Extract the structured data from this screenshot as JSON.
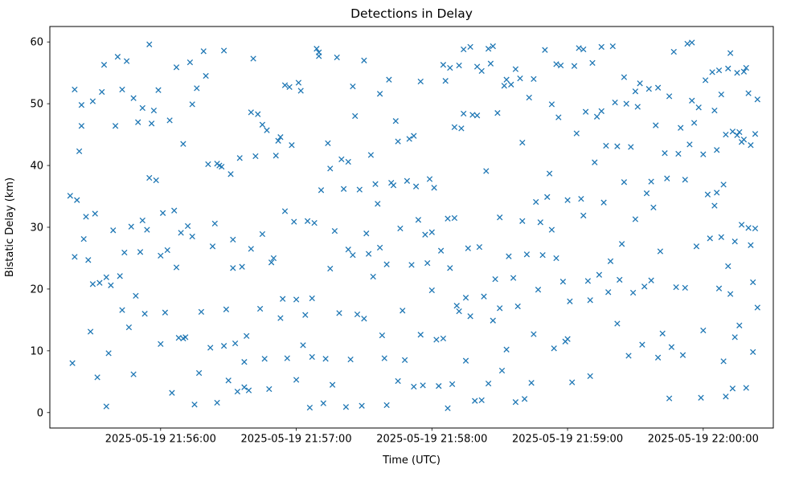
{
  "chart_data": {
    "type": "scatter",
    "title": "Detections in Delay",
    "xlabel": "Time (UTC)",
    "ylabel": "Bistatic Delay (km)",
    "marker": "x",
    "marker_color": "#1f77b4",
    "x_unit": "seconds after 2025-05-19 21:55:00 UTC",
    "xlim": [
      11,
      331
    ],
    "ylim": [
      -2.5,
      62.5
    ],
    "x_ticks": [
      {
        "value": 60,
        "label": "2025-05-19 21:56:00"
      },
      {
        "value": 120,
        "label": "2025-05-19 21:57:00"
      },
      {
        "value": 180,
        "label": "2025-05-19 21:58:00"
      },
      {
        "value": 240,
        "label": "2025-05-19 21:59:00"
      },
      {
        "value": 300,
        "label": "2025-05-19 22:00:00"
      }
    ],
    "y_ticks": [
      {
        "value": 0,
        "label": "0"
      },
      {
        "value": 10,
        "label": "10"
      },
      {
        "value": 20,
        "label": "20"
      },
      {
        "value": 30,
        "label": "30"
      },
      {
        "value": 40,
        "label": "40"
      },
      {
        "value": 50,
        "label": "50"
      },
      {
        "value": 60,
        "label": "60"
      }
    ],
    "points": [
      [
        20,
        35.1
      ],
      [
        21,
        8.0
      ],
      [
        22,
        52.3
      ],
      [
        22,
        25.2
      ],
      [
        23,
        34.4
      ],
      [
        24,
        42.3
      ],
      [
        25,
        49.8
      ],
      [
        26,
        28.1
      ],
      [
        27,
        31.7
      ],
      [
        28,
        24.7
      ],
      [
        29,
        13.1
      ],
      [
        30,
        50.4
      ],
      [
        31,
        32.2
      ],
      [
        32,
        5.7
      ],
      [
        33,
        21.0
      ],
      [
        34,
        51.9
      ],
      [
        30,
        20.8
      ],
      [
        25,
        46.4
      ],
      [
        35,
        56.3
      ],
      [
        36,
        1.0
      ],
      [
        37,
        9.6
      ],
      [
        38,
        20.6
      ],
      [
        39,
        29.5
      ],
      [
        40,
        46.4
      ],
      [
        41,
        57.6
      ],
      [
        42,
        22.1
      ],
      [
        43,
        16.6
      ],
      [
        44,
        25.9
      ],
      [
        45,
        56.9
      ],
      [
        46,
        13.8
      ],
      [
        47,
        30.1
      ],
      [
        48,
        50.9
      ],
      [
        49,
        18.9
      ],
      [
        36,
        21.9
      ],
      [
        43,
        52.3
      ],
      [
        48,
        6.2
      ],
      [
        50,
        47.0
      ],
      [
        51,
        26.0
      ],
      [
        52,
        31.1
      ],
      [
        53,
        16.0
      ],
      [
        54,
        29.6
      ],
      [
        55,
        38.0
      ],
      [
        56,
        46.8
      ],
      [
        57,
        48.9
      ],
      [
        58,
        37.6
      ],
      [
        59,
        52.2
      ],
      [
        60,
        11.1
      ],
      [
        61,
        32.3
      ],
      [
        62,
        16.2
      ],
      [
        63,
        26.3
      ],
      [
        64,
        47.3
      ],
      [
        55,
        59.6
      ],
      [
        60,
        25.4
      ],
      [
        52,
        49.3
      ],
      [
        65,
        3.2
      ],
      [
        66,
        32.7
      ],
      [
        67,
        55.9
      ],
      [
        68,
        12.1
      ],
      [
        69,
        29.1
      ],
      [
        70,
        43.5
      ],
      [
        71,
        12.2
      ],
      [
        72,
        30.2
      ],
      [
        73,
        56.7
      ],
      [
        74,
        28.5
      ],
      [
        75,
        1.3
      ],
      [
        76,
        52.5
      ],
      [
        77,
        6.4
      ],
      [
        78,
        16.3
      ],
      [
        79,
        58.5
      ],
      [
        70,
        12.0
      ],
      [
        74,
        49.9
      ],
      [
        67,
        23.5
      ],
      [
        80,
        54.5
      ],
      [
        81,
        40.2
      ],
      [
        82,
        10.5
      ],
      [
        83,
        26.9
      ],
      [
        84,
        30.6
      ],
      [
        85,
        1.6
      ],
      [
        86,
        40.0
      ],
      [
        87,
        39.8
      ],
      [
        88,
        10.8
      ],
      [
        89,
        16.7
      ],
      [
        90,
        5.2
      ],
      [
        91,
        38.6
      ],
      [
        92,
        23.4
      ],
      [
        93,
        11.2
      ],
      [
        94,
        3.4
      ],
      [
        85,
        40.3
      ],
      [
        88,
        58.6
      ],
      [
        92,
        28.0
      ],
      [
        95,
        41.2
      ],
      [
        96,
        23.6
      ],
      [
        97,
        8.2
      ],
      [
        98,
        12.4
      ],
      [
        99,
        3.6
      ],
      [
        100,
        26.5
      ],
      [
        101,
        57.3
      ],
      [
        102,
        41.5
      ],
      [
        103,
        48.3
      ],
      [
        104,
        16.8
      ],
      [
        105,
        46.6
      ],
      [
        106,
        8.7
      ],
      [
        107,
        45.7
      ],
      [
        108,
        3.8
      ],
      [
        109,
        24.3
      ],
      [
        100,
        48.6
      ],
      [
        105,
        28.9
      ],
      [
        97,
        4.1
      ],
      [
        110,
        25.0
      ],
      [
        111,
        41.6
      ],
      [
        112,
        44.0
      ],
      [
        113,
        15.3
      ],
      [
        114,
        18.4
      ],
      [
        115,
        32.6
      ],
      [
        116,
        8.8
      ],
      [
        117,
        52.7
      ],
      [
        118,
        43.3
      ],
      [
        119,
        30.9
      ],
      [
        120,
        18.3
      ],
      [
        121,
        53.4
      ],
      [
        122,
        52.1
      ],
      [
        123,
        10.9
      ],
      [
        124,
        15.8
      ],
      [
        115,
        53.0
      ],
      [
        120,
        5.3
      ],
      [
        113,
        44.6
      ],
      [
        125,
        31.0
      ],
      [
        126,
        0.8
      ],
      [
        127,
        18.5
      ],
      [
        128,
        30.7
      ],
      [
        129,
        58.9
      ],
      [
        130,
        57.7
      ],
      [
        131,
        36.0
      ],
      [
        132,
        1.5
      ],
      [
        133,
        8.7
      ],
      [
        134,
        43.6
      ],
      [
        135,
        23.3
      ],
      [
        136,
        4.5
      ],
      [
        137,
        29.4
      ],
      [
        138,
        57.5
      ],
      [
        139,
        16.1
      ],
      [
        130,
        58.3
      ],
      [
        135,
        39.5
      ],
      [
        127,
        9.0
      ],
      [
        140,
        41.0
      ],
      [
        141,
        36.2
      ],
      [
        142,
        0.9
      ],
      [
        143,
        26.4
      ],
      [
        144,
        8.6
      ],
      [
        145,
        25.5
      ],
      [
        146,
        48.0
      ],
      [
        147,
        15.9
      ],
      [
        148,
        36.1
      ],
      [
        149,
        1.1
      ],
      [
        150,
        57.0
      ],
      [
        151,
        29.0
      ],
      [
        152,
        25.7
      ],
      [
        153,
        41.7
      ],
      [
        154,
        22.0
      ],
      [
        145,
        52.8
      ],
      [
        150,
        15.2
      ],
      [
        143,
        40.6
      ],
      [
        155,
        37.0
      ],
      [
        156,
        33.8
      ],
      [
        157,
        26.7
      ],
      [
        158,
        12.5
      ],
      [
        159,
        8.8
      ],
      [
        160,
        1.2
      ],
      [
        161,
        53.9
      ],
      [
        162,
        37.2
      ],
      [
        163,
        36.8
      ],
      [
        164,
        47.2
      ],
      [
        165,
        5.1
      ],
      [
        166,
        29.8
      ],
      [
        167,
        16.5
      ],
      [
        168,
        8.5
      ],
      [
        169,
        37.5
      ],
      [
        160,
        24.0
      ],
      [
        165,
        43.9
      ],
      [
        157,
        51.6
      ],
      [
        170,
        44.3
      ],
      [
        171,
        23.9
      ],
      [
        172,
        4.2
      ],
      [
        173,
        36.6
      ],
      [
        174,
        31.2
      ],
      [
        175,
        12.6
      ],
      [
        176,
        4.4
      ],
      [
        177,
        28.8
      ],
      [
        178,
        24.2
      ],
      [
        179,
        37.8
      ],
      [
        180,
        19.8
      ],
      [
        181,
        36.4
      ],
      [
        182,
        11.8
      ],
      [
        183,
        4.3
      ],
      [
        184,
        26.2
      ],
      [
        175,
        53.6
      ],
      [
        180,
        29.2
      ],
      [
        172,
        44.8
      ],
      [
        185,
        12.0
      ],
      [
        186,
        53.7
      ],
      [
        187,
        31.4
      ],
      [
        188,
        23.4
      ],
      [
        189,
        4.6
      ],
      [
        190,
        46.2
      ],
      [
        191,
        17.3
      ],
      [
        192,
        16.4
      ],
      [
        193,
        46.0
      ],
      [
        194,
        48.4
      ],
      [
        195,
        8.4
      ],
      [
        196,
        26.6
      ],
      [
        197,
        15.6
      ],
      [
        198,
        48.2
      ],
      [
        199,
        1.9
      ],
      [
        190,
        31.5
      ],
      [
        195,
        18.6
      ],
      [
        187,
        0.7
      ],
      [
        185,
        56.3
      ],
      [
        192,
        56.2
      ],
      [
        197,
        59.2
      ],
      [
        188,
        55.8
      ],
      [
        194,
        58.8
      ],
      [
        200,
        56.0
      ],
      [
        200,
        48.1
      ],
      [
        201,
        26.8
      ],
      [
        202,
        55.3
      ],
      [
        203,
        18.8
      ],
      [
        204,
        39.1
      ],
      [
        205,
        4.7
      ],
      [
        206,
        56.5
      ],
      [
        207,
        14.9
      ],
      [
        208,
        21.6
      ],
      [
        209,
        48.5
      ],
      [
        210,
        31.6
      ],
      [
        211,
        6.8
      ],
      [
        212,
        52.9
      ],
      [
        213,
        10.2
      ],
      [
        214,
        25.3
      ],
      [
        205,
        58.9
      ],
      [
        210,
        16.9
      ],
      [
        202,
        2.0
      ],
      [
        207,
        59.3
      ],
      [
        213,
        53.9
      ],
      [
        215,
        53.1
      ],
      [
        216,
        21.8
      ],
      [
        217,
        55.6
      ],
      [
        218,
        17.2
      ],
      [
        219,
        54.1
      ],
      [
        220,
        43.7
      ],
      [
        221,
        2.2
      ],
      [
        222,
        25.6
      ],
      [
        223,
        51.0
      ],
      [
        224,
        4.8
      ],
      [
        225,
        54.0
      ],
      [
        226,
        34.1
      ],
      [
        227,
        19.9
      ],
      [
        228,
        30.8
      ],
      [
        229,
        25.5
      ],
      [
        220,
        31.0
      ],
      [
        225,
        12.7
      ],
      [
        217,
        1.7
      ],
      [
        230,
        58.7
      ],
      [
        231,
        34.9
      ],
      [
        232,
        38.7
      ],
      [
        233,
        29.6
      ],
      [
        234,
        10.4
      ],
      [
        235,
        56.4
      ],
      [
        236,
        47.8
      ],
      [
        237,
        56.2
      ],
      [
        238,
        21.2
      ],
      [
        239,
        11.5
      ],
      [
        240,
        34.4
      ],
      [
        241,
        18.0
      ],
      [
        242,
        4.9
      ],
      [
        243,
        56.1
      ],
      [
        244,
        45.2
      ],
      [
        235,
        25.0
      ],
      [
        240,
        11.9
      ],
      [
        233,
        49.9
      ],
      [
        245,
        59.0
      ],
      [
        246,
        34.6
      ],
      [
        247,
        58.8
      ],
      [
        248,
        48.7
      ],
      [
        249,
        21.3
      ],
      [
        250,
        18.2
      ],
      [
        251,
        56.6
      ],
      [
        252,
        40.5
      ],
      [
        253,
        47.9
      ],
      [
        254,
        22.3
      ],
      [
        255,
        59.2
      ],
      [
        256,
        34.0
      ],
      [
        257,
        43.2
      ],
      [
        258,
        19.5
      ],
      [
        259,
        24.5
      ],
      [
        250,
        5.9
      ],
      [
        255,
        48.8
      ],
      [
        247,
        31.9
      ],
      [
        260,
        59.3
      ],
      [
        261,
        50.2
      ],
      [
        262,
        43.1
      ],
      [
        263,
        21.5
      ],
      [
        264,
        27.3
      ],
      [
        265,
        54.3
      ],
      [
        266,
        50.0
      ],
      [
        267,
        9.2
      ],
      [
        268,
        43.0
      ],
      [
        269,
        19.4
      ],
      [
        270,
        31.3
      ],
      [
        271,
        49.5
      ],
      [
        272,
        53.3
      ],
      [
        273,
        11.0
      ],
      [
        274,
        20.4
      ],
      [
        265,
        37.3
      ],
      [
        270,
        52.0
      ],
      [
        262,
        14.4
      ],
      [
        275,
        35.5
      ],
      [
        276,
        52.4
      ],
      [
        277,
        37.4
      ],
      [
        278,
        33.2
      ],
      [
        279,
        46.5
      ],
      [
        280,
        8.9
      ],
      [
        281,
        26.1
      ],
      [
        282,
        12.8
      ],
      [
        283,
        42.0
      ],
      [
        284,
        37.9
      ],
      [
        285,
        51.2
      ],
      [
        286,
        10.6
      ],
      [
        287,
        58.4
      ],
      [
        288,
        20.3
      ],
      [
        289,
        41.9
      ],
      [
        280,
        52.6
      ],
      [
        285,
        2.3
      ],
      [
        277,
        21.4
      ],
      [
        290,
        46.1
      ],
      [
        291,
        9.3
      ],
      [
        292,
        20.2
      ],
      [
        293,
        59.7
      ],
      [
        294,
        43.4
      ],
      [
        295,
        50.5
      ],
      [
        296,
        46.9
      ],
      [
        297,
        26.9
      ],
      [
        298,
        49.4
      ],
      [
        299,
        2.4
      ],
      [
        300,
        41.8
      ],
      [
        301,
        53.8
      ],
      [
        302,
        35.3
      ],
      [
        303,
        28.2
      ],
      [
        304,
        55.1
      ],
      [
        295,
        59.9
      ],
      [
        300,
        13.3
      ],
      [
        292,
        37.7
      ],
      [
        305,
        48.9
      ],
      [
        306,
        42.5
      ],
      [
        307,
        55.4
      ],
      [
        308,
        51.5
      ],
      [
        309,
        8.3
      ],
      [
        310,
        45.0
      ],
      [
        311,
        55.7
      ],
      [
        312,
        19.2
      ],
      [
        313,
        45.5
      ],
      [
        314,
        27.7
      ],
      [
        315,
        55.0
      ],
      [
        316,
        45.4
      ],
      [
        317,
        30.4
      ],
      [
        318,
        44.2
      ],
      [
        319,
        55.8
      ],
      [
        320,
        29.9
      ],
      [
        321,
        43.3
      ],
      [
        322,
        9.8
      ],
      [
        323,
        45.1
      ],
      [
        324,
        17.0
      ],
      [
        320,
        51.7
      ],
      [
        316,
        14.1
      ],
      [
        312,
        58.2
      ],
      [
        308,
        28.4
      ],
      [
        322,
        21.1
      ],
      [
        318,
        55.2
      ],
      [
        314,
        12.2
      ],
      [
        310,
        2.6
      ],
      [
        306,
        35.6
      ],
      [
        324,
        50.7
      ],
      [
        321,
        27.1
      ],
      [
        309,
        36.9
      ],
      [
        311,
        23.7
      ],
      [
        313,
        3.9
      ],
      [
        315,
        44.9
      ],
      [
        323,
        29.8
      ],
      [
        307,
        20.1
      ],
      [
        317,
        43.8
      ],
      [
        319,
        4.0
      ],
      [
        305,
        33.5
      ]
    ]
  }
}
